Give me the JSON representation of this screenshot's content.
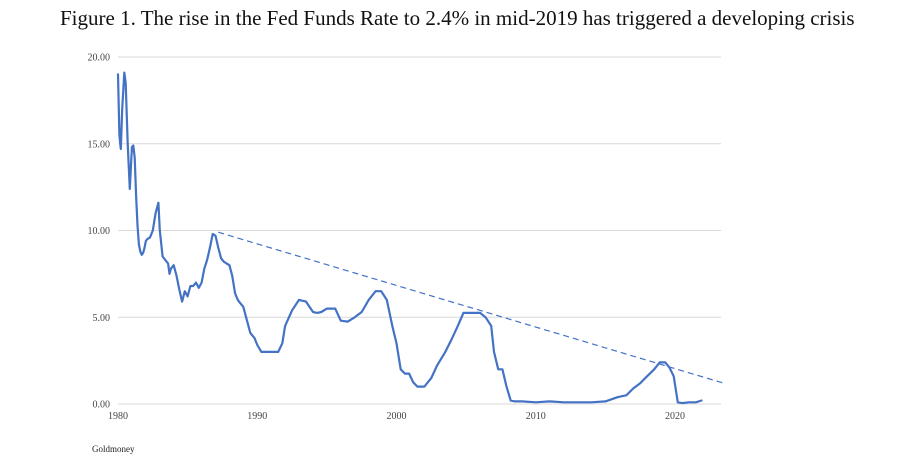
{
  "title": "Figure 1. The rise in the Fed Funds Rate to 2.4% in mid-2019 has triggered a developing crisis",
  "source": "Goldmoney",
  "chart_data": {
    "type": "line",
    "title": "Figure 1. The rise in the Fed Funds Rate to 2.4% in mid-2019 has triggered a developing crisis",
    "xlabel": "",
    "ylabel": "",
    "xlim": [
      1980,
      2024
    ],
    "ylim": [
      0,
      20
    ],
    "x_ticks": [
      "1980",
      "1990",
      "2000",
      "2010",
      "2020"
    ],
    "y_ticks": [
      "0.00",
      "5.00",
      "10.00",
      "15.00",
      "20.00"
    ],
    "grid": "horizontal",
    "colors": {
      "series": "#4472c4",
      "grid": "#d9d9d9",
      "trend": "#4472c4"
    },
    "series": [
      {
        "x": [
          1980.0,
          1980.1,
          1980.2,
          1980.3,
          1980.45,
          1980.55,
          1980.7,
          1980.85,
          1981.0,
          1981.1,
          1981.2,
          1981.3,
          1981.4,
          1981.5,
          1981.6,
          1981.7,
          1981.8,
          1981.9,
          1982.0,
          1982.1,
          1982.3,
          1982.5,
          1982.7,
          1982.9,
          1983.0,
          1983.2,
          1983.4,
          1983.6,
          1983.7,
          1983.8,
          1984.0,
          1984.2,
          1984.4,
          1984.6,
          1984.8,
          1985.0,
          1985.2,
          1985.4,
          1985.6,
          1985.8,
          1986.0,
          1986.2,
          1986.4,
          1986.6,
          1986.8,
          1987.0,
          1987.2,
          1987.4,
          1987.6,
          1987.8,
          1988.0,
          1988.2,
          1988.4,
          1988.6,
          1988.8,
          1989.0,
          1989.2,
          1989.5,
          1989.8,
          1990.0,
          1990.3,
          1990.6,
          1990.9,
          1991.2,
          1991.5,
          1991.8,
          1992.0,
          1992.5,
          1993.0,
          1993.5,
          1994.0,
          1994.3,
          1994.6,
          1995.0,
          1995.3,
          1995.6,
          1996.0,
          1996.5,
          1997.0,
          1997.5,
          1998.0,
          1998.5,
          1998.9,
          1999.3,
          1999.7,
          2000.0,
          2000.3,
          2000.6,
          2000.9,
          2001.2,
          2001.5,
          2001.8,
          2002.0,
          2002.5,
          2002.9,
          2003.5,
          2004.0,
          2004.4,
          2004.8,
          2005.2,
          2005.6,
          2006.0,
          2006.4,
          2006.8,
          2007.0,
          2007.3,
          2007.6,
          2007.9,
          2008.2,
          2008.5,
          2008.8,
          2009.0,
          2010.0,
          2011.0,
          2012.0,
          2013.0,
          2014.0,
          2015.0,
          2015.9,
          2016.5,
          2017.0,
          2017.5,
          2018.0,
          2018.5,
          2018.9,
          2019.3,
          2019.6,
          2019.9,
          2020.2,
          2020.5,
          2021.0,
          2021.5,
          2021.9
        ],
        "y": [
          19.0,
          15.5,
          14.7,
          17.0,
          19.1,
          18.5,
          15.0,
          12.4,
          14.8,
          14.9,
          14.2,
          12.0,
          10.3,
          9.2,
          8.8,
          8.6,
          8.7,
          9.0,
          9.4,
          9.5,
          9.6,
          10.0,
          11.0,
          11.6,
          10.0,
          8.5,
          8.3,
          8.1,
          7.5,
          7.8,
          8.0,
          7.4,
          6.6,
          5.9,
          6.5,
          6.2,
          6.8,
          6.8,
          7.0,
          6.7,
          7.0,
          7.8,
          8.3,
          9.0,
          9.8,
          9.7,
          9.0,
          8.4,
          8.2,
          8.1,
          8.0,
          7.4,
          6.4,
          6.0,
          5.8,
          5.6,
          5.0,
          4.1,
          3.8,
          3.4,
          3.0,
          3.0,
          3.0,
          3.0,
          3.0,
          3.5,
          4.5,
          5.4,
          6.0,
          5.9,
          5.3,
          5.25,
          5.3,
          5.5,
          5.5,
          5.5,
          4.8,
          4.75,
          5.0,
          5.3,
          6.0,
          6.5,
          6.5,
          6.0,
          4.5,
          3.5,
          2.0,
          1.75,
          1.75,
          1.25,
          1.0,
          1.0,
          1.0,
          1.5,
          2.2,
          3.0,
          3.8,
          4.5,
          5.25,
          5.25,
          5.25,
          5.25,
          5.0,
          4.5,
          3.0,
          2.0,
          2.0,
          1.0,
          0.2,
          0.15,
          0.15,
          0.15,
          0.1,
          0.15,
          0.1,
          0.1,
          0.1,
          0.15,
          0.4,
          0.5,
          0.9,
          1.2,
          1.6,
          2.0,
          2.4,
          2.4,
          2.1,
          1.6,
          0.1,
          0.05,
          0.1,
          0.1,
          0.2
        ]
      }
    ],
    "trendline": {
      "style": "dashed",
      "x": [
        1987.2,
        2023.5
      ],
      "y": [
        9.9,
        1.2
      ]
    }
  }
}
